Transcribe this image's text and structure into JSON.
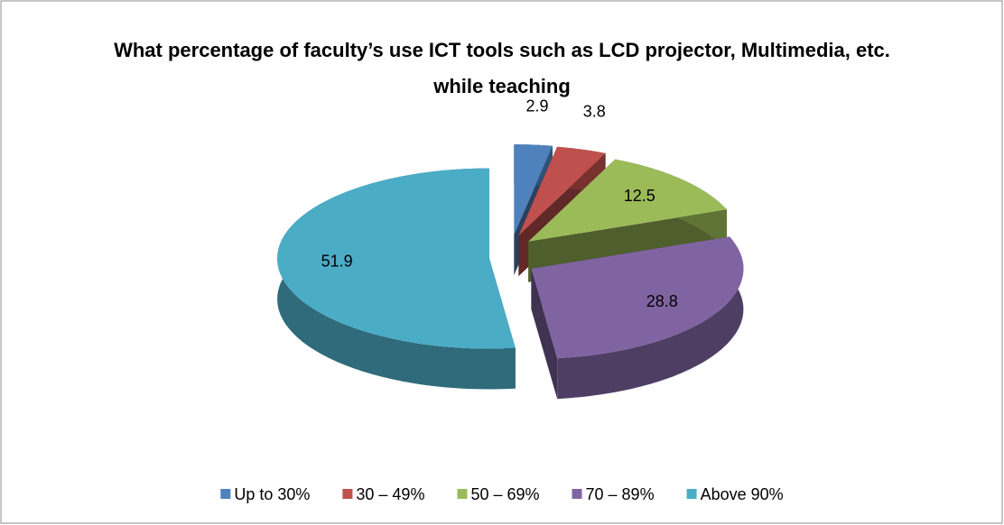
{
  "chart_data": {
    "type": "pie3d",
    "title": "What percentage of faculty’s use ICT tools such as LCD projector, Multimedia, etc. while teaching",
    "categories": [
      "Up to 30%",
      "30 – 49%",
      "50 – 69%",
      "70 – 89%",
      "Above 90%"
    ],
    "values": [
      2.9,
      3.8,
      12.5,
      28.8,
      51.9
    ],
    "colors": [
      "#4f81bd",
      "#c0504d",
      "#9bbb59",
      "#8064a2",
      "#4bacc6"
    ],
    "legend": "bottom"
  }
}
